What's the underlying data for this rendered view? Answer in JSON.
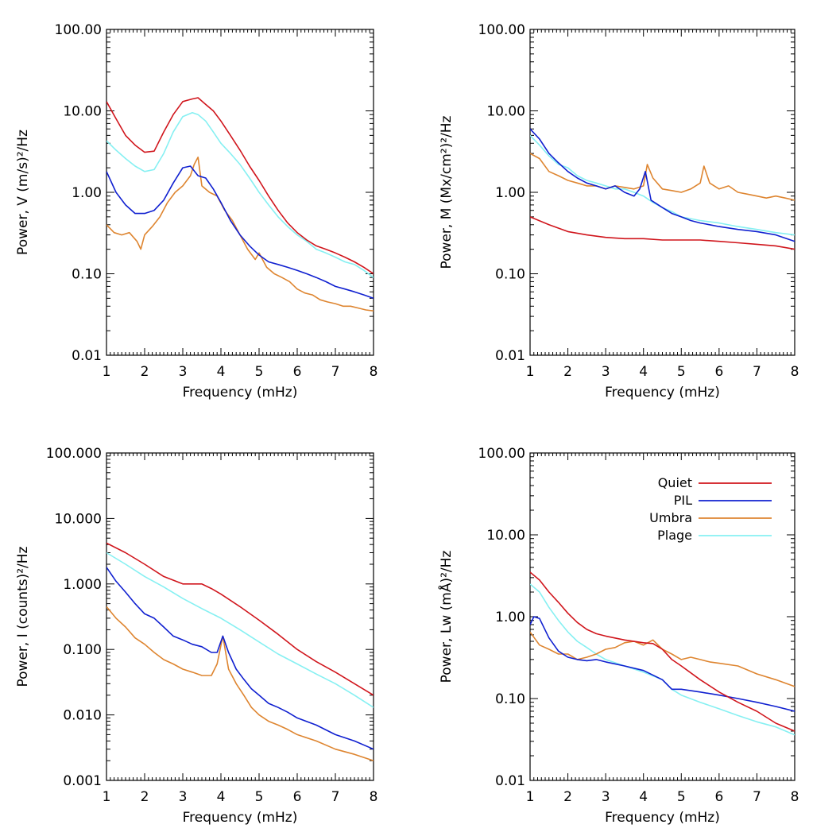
{
  "colors": {
    "Quiet": "#d0151c",
    "PIL": "#1020d0",
    "Umbra": "#de8530",
    "Plage": "#86f0f2"
  },
  "legend": [
    {
      "name": "Quiet",
      "color": "#d0151c"
    },
    {
      "name": "PIL",
      "color": "#1020d0"
    },
    {
      "name": "Umbra",
      "color": "#de8530"
    },
    {
      "name": "Plage",
      "color": "#86f0f2"
    }
  ],
  "chart_data": [
    {
      "id": "V",
      "type": "line",
      "title": "",
      "xlabel": "Frequency (mHz)",
      "ylabel": "Power, V (m/s)²/Hz",
      "xscale": "linear",
      "yscale": "log",
      "xlim": [
        1,
        8
      ],
      "ylim": [
        0.01,
        100
      ],
      "xticks": [
        1,
        2,
        3,
        4,
        5,
        6,
        7,
        8
      ],
      "xtick_labels": [
        "1",
        "2",
        "3",
        "4",
        "5",
        "6",
        "7",
        "8"
      ],
      "yticks": [
        0.01,
        0.1,
        1,
        10,
        100
      ],
      "ytick_labels": [
        "0.01",
        "0.10",
        "1.00",
        "10.00",
        "100.00"
      ],
      "legend": false,
      "series": [
        {
          "name": "Quiet",
          "x": [
            1.0,
            1.25,
            1.5,
            1.75,
            2.0,
            2.25,
            2.5,
            2.75,
            3.0,
            3.25,
            3.4,
            3.6,
            3.8,
            4.0,
            4.25,
            4.5,
            4.75,
            5.0,
            5.25,
            5.5,
            5.75,
            6.0,
            6.25,
            6.5,
            6.75,
            7.0,
            7.25,
            7.5,
            7.75,
            8.0
          ],
          "y": [
            13,
            8,
            5,
            3.8,
            3.1,
            3.2,
            5.5,
            9,
            13,
            14,
            14.5,
            12,
            10,
            7.5,
            5,
            3.3,
            2.1,
            1.4,
            0.9,
            0.6,
            0.42,
            0.32,
            0.26,
            0.22,
            0.2,
            0.18,
            0.16,
            0.14,
            0.12,
            0.1
          ]
        },
        {
          "name": "PIL",
          "x": [
            1.0,
            1.25,
            1.5,
            1.75,
            2.0,
            2.25,
            2.5,
            2.75,
            3.0,
            3.2,
            3.4,
            3.6,
            3.8,
            4.0,
            4.25,
            4.5,
            4.75,
            5.0,
            5.25,
            5.5,
            5.75,
            6.0,
            6.25,
            6.5,
            6.75,
            7.0,
            7.25,
            7.5,
            7.75,
            8.0
          ],
          "y": [
            1.8,
            1.0,
            0.7,
            0.55,
            0.55,
            0.6,
            0.8,
            1.3,
            2.0,
            2.1,
            1.6,
            1.5,
            1.1,
            0.75,
            0.45,
            0.3,
            0.22,
            0.17,
            0.14,
            0.13,
            0.12,
            0.11,
            0.1,
            0.09,
            0.08,
            0.07,
            0.065,
            0.06,
            0.055,
            0.05
          ]
        },
        {
          "name": "Umbra",
          "x": [
            1.0,
            1.2,
            1.4,
            1.6,
            1.8,
            1.9,
            2.0,
            2.2,
            2.4,
            2.6,
            2.8,
            3.0,
            3.2,
            3.3,
            3.4,
            3.5,
            3.7,
            3.9,
            4.1,
            4.3,
            4.5,
            4.7,
            4.9,
            5.0,
            5.2,
            5.4,
            5.6,
            5.8,
            6.0,
            6.2,
            6.4,
            6.6,
            6.8,
            7.0,
            7.2,
            7.4,
            7.6,
            7.8,
            8.0
          ],
          "y": [
            0.4,
            0.32,
            0.3,
            0.32,
            0.25,
            0.2,
            0.3,
            0.38,
            0.5,
            0.75,
            1.0,
            1.2,
            1.6,
            2.2,
            2.7,
            1.2,
            1.0,
            0.9,
            0.6,
            0.45,
            0.3,
            0.2,
            0.15,
            0.18,
            0.12,
            0.1,
            0.09,
            0.08,
            0.065,
            0.058,
            0.055,
            0.048,
            0.045,
            0.043,
            0.04,
            0.04,
            0.038,
            0.036,
            0.035
          ]
        },
        {
          "name": "Plage",
          "x": [
            1.0,
            1.25,
            1.5,
            1.75,
            2.0,
            2.25,
            2.5,
            2.75,
            3.0,
            3.25,
            3.4,
            3.6,
            3.8,
            4.0,
            4.25,
            4.5,
            4.75,
            5.0,
            5.25,
            5.5,
            5.75,
            6.0,
            6.25,
            6.5,
            6.75,
            7.0,
            7.25,
            7.5,
            7.75,
            8.0
          ],
          "y": [
            4.3,
            3.3,
            2.6,
            2.1,
            1.8,
            1.9,
            3.0,
            5.5,
            8.5,
            9.5,
            9.0,
            7.5,
            5.5,
            4.0,
            3.0,
            2.2,
            1.5,
            1.0,
            0.7,
            0.5,
            0.38,
            0.3,
            0.25,
            0.2,
            0.18,
            0.16,
            0.14,
            0.13,
            0.11,
            0.09
          ]
        }
      ]
    },
    {
      "id": "M",
      "type": "line",
      "title": "",
      "xlabel": "Frequency (mHz)",
      "ylabel": "Power, M (Mx/cm²)²/Hz",
      "xscale": "linear",
      "yscale": "log",
      "xlim": [
        1,
        8
      ],
      "ylim": [
        0.01,
        100
      ],
      "xticks": [
        1,
        2,
        3,
        4,
        5,
        6,
        7,
        8
      ],
      "xtick_labels": [
        "1",
        "2",
        "3",
        "4",
        "5",
        "6",
        "7",
        "8"
      ],
      "yticks": [
        0.01,
        0.1,
        1,
        10,
        100
      ],
      "ytick_labels": [
        "0.01",
        "0.10",
        "1.00",
        "10.00",
        "100.00"
      ],
      "legend": false,
      "series": [
        {
          "name": "Quiet",
          "x": [
            1.0,
            1.5,
            2.0,
            2.5,
            3.0,
            3.5,
            4.0,
            4.5,
            5.0,
            5.5,
            6.0,
            6.5,
            7.0,
            7.5,
            8.0
          ],
          "y": [
            0.5,
            0.4,
            0.33,
            0.3,
            0.28,
            0.27,
            0.27,
            0.26,
            0.26,
            0.26,
            0.25,
            0.24,
            0.23,
            0.22,
            0.2
          ]
        },
        {
          "name": "PIL",
          "x": [
            1.0,
            1.25,
            1.5,
            1.75,
            2.0,
            2.25,
            2.5,
            2.75,
            3.0,
            3.25,
            3.5,
            3.75,
            3.9,
            4.05,
            4.2,
            4.5,
            4.75,
            5.0,
            5.25,
            5.5,
            5.75,
            6.0,
            6.5,
            7.0,
            7.5,
            8.0
          ],
          "y": [
            6.0,
            4.5,
            3.0,
            2.3,
            1.8,
            1.5,
            1.3,
            1.2,
            1.1,
            1.2,
            1.0,
            0.9,
            1.1,
            1.8,
            0.8,
            0.65,
            0.55,
            0.5,
            0.45,
            0.42,
            0.4,
            0.38,
            0.35,
            0.33,
            0.3,
            0.25
          ]
        },
        {
          "name": "Umbra",
          "x": [
            1.0,
            1.25,
            1.5,
            1.75,
            2.0,
            2.25,
            2.5,
            2.75,
            3.0,
            3.25,
            3.5,
            3.75,
            4.0,
            4.1,
            4.25,
            4.5,
            4.75,
            5.0,
            5.25,
            5.5,
            5.6,
            5.75,
            6.0,
            6.25,
            6.5,
            6.75,
            7.0,
            7.25,
            7.5,
            7.75,
            8.0
          ],
          "y": [
            3.0,
            2.6,
            1.8,
            1.6,
            1.4,
            1.3,
            1.2,
            1.2,
            1.1,
            1.2,
            1.15,
            1.1,
            1.2,
            2.2,
            1.5,
            1.1,
            1.05,
            1.0,
            1.1,
            1.3,
            2.1,
            1.3,
            1.1,
            1.2,
            1.0,
            0.95,
            0.9,
            0.85,
            0.9,
            0.85,
            0.8
          ]
        },
        {
          "name": "Plage",
          "x": [
            1.0,
            1.25,
            1.5,
            1.75,
            2.0,
            2.25,
            2.5,
            2.75,
            3.0,
            3.25,
            3.5,
            3.75,
            4.0,
            4.25,
            4.5,
            4.75,
            5.0,
            5.5,
            6.0,
            6.5,
            7.0,
            7.5,
            8.0
          ],
          "y": [
            5.0,
            3.8,
            2.8,
            2.2,
            2.0,
            1.6,
            1.4,
            1.3,
            1.2,
            1.1,
            1.1,
            1.0,
            0.9,
            0.75,
            0.65,
            0.58,
            0.5,
            0.45,
            0.42,
            0.38,
            0.35,
            0.32,
            0.3
          ]
        }
      ]
    },
    {
      "id": "I",
      "type": "line",
      "title": "",
      "xlabel": "Frequency (mHz)",
      "ylabel": "Power, I (counts)²/Hz",
      "xscale": "linear",
      "yscale": "log",
      "xlim": [
        1,
        8
      ],
      "ylim": [
        0.001,
        100
      ],
      "xticks": [
        1,
        2,
        3,
        4,
        5,
        6,
        7,
        8
      ],
      "xtick_labels": [
        "1",
        "2",
        "3",
        "4",
        "5",
        "6",
        "7",
        "8"
      ],
      "yticks": [
        0.001,
        0.01,
        0.1,
        1,
        10,
        100
      ],
      "ytick_labels": [
        "0.001",
        "0.010",
        "0.100",
        "1.000",
        "10.000",
        "100.000"
      ],
      "legend": false,
      "series": [
        {
          "name": "Quiet",
          "x": [
            1.0,
            1.5,
            2.0,
            2.5,
            3.0,
            3.25,
            3.5,
            3.75,
            4.0,
            4.5,
            5.0,
            5.5,
            6.0,
            6.5,
            7.0,
            7.5,
            8.0
          ],
          "y": [
            4.2,
            3.0,
            2.0,
            1.3,
            1.0,
            1.0,
            1.0,
            0.85,
            0.7,
            0.45,
            0.28,
            0.17,
            0.1,
            0.065,
            0.045,
            0.03,
            0.02
          ]
        },
        {
          "name": "PIL",
          "x": [
            1.0,
            1.25,
            1.5,
            1.75,
            2.0,
            2.25,
            2.5,
            2.75,
            3.0,
            3.25,
            3.5,
            3.75,
            3.9,
            4.05,
            4.2,
            4.4,
            4.6,
            4.8,
            5.0,
            5.25,
            5.5,
            5.75,
            6.0,
            6.5,
            7.0,
            7.5,
            8.0
          ],
          "y": [
            1.8,
            1.1,
            0.75,
            0.5,
            0.35,
            0.3,
            0.22,
            0.16,
            0.14,
            0.12,
            0.11,
            0.09,
            0.09,
            0.16,
            0.09,
            0.05,
            0.035,
            0.025,
            0.02,
            0.015,
            0.013,
            0.011,
            0.009,
            0.007,
            0.005,
            0.004,
            0.003
          ]
        },
        {
          "name": "Umbra",
          "x": [
            1.0,
            1.25,
            1.5,
            1.75,
            2.0,
            2.25,
            2.5,
            2.75,
            3.0,
            3.25,
            3.5,
            3.75,
            3.9,
            4.05,
            4.2,
            4.4,
            4.6,
            4.8,
            5.0,
            5.25,
            5.5,
            5.75,
            6.0,
            6.5,
            7.0,
            7.5,
            8.0
          ],
          "y": [
            0.45,
            0.3,
            0.22,
            0.15,
            0.12,
            0.09,
            0.07,
            0.06,
            0.05,
            0.045,
            0.04,
            0.04,
            0.06,
            0.16,
            0.05,
            0.03,
            0.02,
            0.013,
            0.01,
            0.008,
            0.007,
            0.006,
            0.005,
            0.004,
            0.003,
            0.0025,
            0.002
          ]
        },
        {
          "name": "Plage",
          "x": [
            1.0,
            1.5,
            2.0,
            2.5,
            3.0,
            3.5,
            4.0,
            4.5,
            5.0,
            5.5,
            6.0,
            6.5,
            7.0,
            7.5,
            8.0
          ],
          "y": [
            3.0,
            2.0,
            1.3,
            0.9,
            0.6,
            0.42,
            0.3,
            0.2,
            0.13,
            0.085,
            0.06,
            0.042,
            0.03,
            0.02,
            0.013
          ]
        }
      ]
    },
    {
      "id": "Lw",
      "type": "line",
      "title": "",
      "xlabel": "Frequency (mHz)",
      "ylabel": "Power, Lw (mÅ)²/Hz",
      "xscale": "linear",
      "yscale": "log",
      "xlim": [
        1,
        8
      ],
      "ylim": [
        0.01,
        100
      ],
      "xticks": [
        1,
        2,
        3,
        4,
        5,
        6,
        7,
        8
      ],
      "xtick_labels": [
        "1",
        "2",
        "3",
        "4",
        "5",
        "6",
        "7",
        "8"
      ],
      "yticks": [
        0.01,
        0.1,
        1,
        10,
        100
      ],
      "ytick_labels": [
        "0.01",
        "0.10",
        "1.00",
        "10.00",
        "100.00"
      ],
      "legend": true,
      "legend_position": "top-right",
      "series": [
        {
          "name": "Quiet",
          "x": [
            1.0,
            1.25,
            1.5,
            1.75,
            2.0,
            2.25,
            2.5,
            2.75,
            3.0,
            3.5,
            4.0,
            4.25,
            4.5,
            4.75,
            5.0,
            5.5,
            6.0,
            6.5,
            7.0,
            7.5,
            8.0
          ],
          "y": [
            3.5,
            2.8,
            2.0,
            1.5,
            1.1,
            0.85,
            0.7,
            0.62,
            0.58,
            0.52,
            0.48,
            0.47,
            0.4,
            0.3,
            0.25,
            0.17,
            0.12,
            0.09,
            0.07,
            0.05,
            0.04
          ]
        },
        {
          "name": "PIL",
          "x": [
            1.0,
            1.1,
            1.25,
            1.5,
            1.75,
            2.0,
            2.25,
            2.5,
            2.75,
            3.0,
            3.5,
            4.0,
            4.5,
            4.75,
            5.0,
            5.5,
            6.0,
            6.5,
            7.0,
            7.5,
            8.0
          ],
          "y": [
            0.8,
            1.0,
            0.95,
            0.55,
            0.38,
            0.32,
            0.3,
            0.29,
            0.3,
            0.28,
            0.25,
            0.22,
            0.17,
            0.13,
            0.13,
            0.12,
            0.11,
            0.1,
            0.09,
            0.08,
            0.07
          ]
        },
        {
          "name": "Umbra",
          "x": [
            1.0,
            1.25,
            1.5,
            1.75,
            2.0,
            2.25,
            2.5,
            2.75,
            3.0,
            3.25,
            3.5,
            3.75,
            4.0,
            4.25,
            4.5,
            4.75,
            5.0,
            5.25,
            5.5,
            5.75,
            6.0,
            6.5,
            7.0,
            7.5,
            8.0
          ],
          "y": [
            0.65,
            0.45,
            0.4,
            0.35,
            0.35,
            0.3,
            0.32,
            0.35,
            0.4,
            0.42,
            0.48,
            0.5,
            0.45,
            0.52,
            0.4,
            0.35,
            0.3,
            0.32,
            0.3,
            0.28,
            0.27,
            0.25,
            0.2,
            0.17,
            0.14
          ]
        },
        {
          "name": "Plage",
          "x": [
            1.0,
            1.25,
            1.5,
            1.75,
            2.0,
            2.25,
            2.5,
            2.75,
            3.0,
            3.5,
            4.0,
            4.5,
            4.75,
            5.0,
            5.5,
            6.0,
            6.5,
            7.0,
            7.5,
            8.0
          ],
          "y": [
            2.5,
            2.0,
            1.3,
            0.9,
            0.65,
            0.5,
            0.42,
            0.35,
            0.3,
            0.25,
            0.21,
            0.17,
            0.13,
            0.11,
            0.09,
            0.075,
            0.062,
            0.052,
            0.045,
            0.036
          ]
        }
      ]
    }
  ]
}
